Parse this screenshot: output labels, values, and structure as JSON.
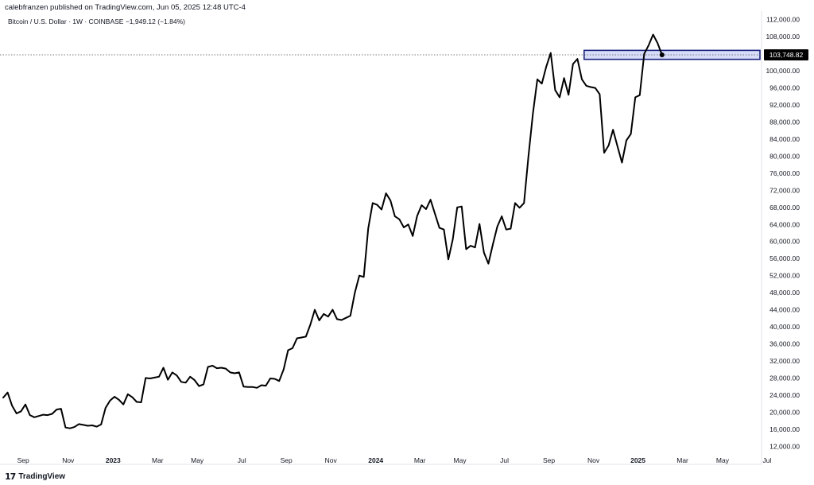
{
  "header": {
    "published": "calebfranzen published on TradingView.com, Jun 05, 2025 12:48 UTC-4",
    "symbol": "Bitcoin / U.S. Dollar · 1W · COINBASE  −1,949.12 (−1.84%)"
  },
  "footer": {
    "logo_mark": "17",
    "logo_text": "TradingView"
  },
  "colors": {
    "line": "#000000",
    "zone_fill": "#c9d0f5",
    "zone_border": "#1a237e",
    "price_tag": "#000000",
    "axis_text": "#131722"
  },
  "chart_data": {
    "type": "line",
    "title": "Bitcoin / U.S. Dollar · 1W · COINBASE",
    "ylim": [
      10000,
      114000
    ],
    "xlim": [
      0,
      170
    ],
    "y_ticks": [
      12000,
      16000,
      20000,
      24000,
      28000,
      32000,
      36000,
      40000,
      44000,
      48000,
      52000,
      56000,
      60000,
      64000,
      68000,
      72000,
      76000,
      80000,
      84000,
      88000,
      92000,
      96000,
      100000,
      104000,
      108000,
      112000
    ],
    "y_tick_labels": [
      "12,000.00",
      "16,000.00",
      "20,000.00",
      "24,000.00",
      "28,000.00",
      "32,000.00",
      "36,000.00",
      "40,000.00",
      "44,000.00",
      "48,000.00",
      "52,000.00",
      "56,000.00",
      "60,000.00",
      "64,000.00",
      "68,000.00",
      "72,000.00",
      "76,000.00",
      "80,000.00",
      "84,000.00",
      "88,000.00",
      "92,000.00",
      "96,000.00",
      "100,000.00",
      "104,000.00",
      "108,000.00",
      "112,000.00"
    ],
    "x_ticks": [
      {
        "x": 4.5,
        "label": "Sep",
        "bold": false
      },
      {
        "x": 14.6,
        "label": "Nov",
        "bold": false
      },
      {
        "x": 24.7,
        "label": "2023",
        "bold": true
      },
      {
        "x": 34.7,
        "label": "Mar",
        "bold": false
      },
      {
        "x": 43.6,
        "label": "May",
        "bold": false
      },
      {
        "x": 53.6,
        "label": "Jul",
        "bold": false
      },
      {
        "x": 63.6,
        "label": "Sep",
        "bold": false
      },
      {
        "x": 73.6,
        "label": "Nov",
        "bold": false
      },
      {
        "x": 83.7,
        "label": "2024",
        "bold": true
      },
      {
        "x": 93.6,
        "label": "Mar",
        "bold": false
      },
      {
        "x": 102.6,
        "label": "May",
        "bold": false
      },
      {
        "x": 112.6,
        "label": "Jul",
        "bold": false
      },
      {
        "x": 122.6,
        "label": "Sep",
        "bold": false
      },
      {
        "x": 132.6,
        "label": "Nov",
        "bold": false
      },
      {
        "x": 142.6,
        "label": "2025",
        "bold": true
      },
      {
        "x": 152.6,
        "label": "Mar",
        "bold": false
      },
      {
        "x": 161.6,
        "label": "May",
        "bold": false
      },
      {
        "x": 171.6,
        "label": "Jul",
        "bold": false
      }
    ],
    "series": [
      {
        "values": [
          23400,
          24600,
          21500,
          19700,
          20200,
          21800,
          19300,
          18800,
          19100,
          19400,
          19300,
          19600,
          20600,
          20800,
          16400,
          16200,
          16500,
          17200,
          17000,
          16800,
          16900,
          16600,
          17100,
          21000,
          22700,
          23600,
          22900,
          21800,
          24200,
          23500,
          22400,
          22300,
          28000,
          27900,
          28100,
          28300,
          30400,
          27600,
          29300,
          28600,
          27100,
          26900,
          28300,
          27500,
          26100,
          26500,
          30600,
          30900,
          30300,
          30400,
          30200,
          29300,
          29100,
          29300,
          26000,
          25900,
          25900,
          25700,
          26300,
          26200,
          27900,
          27800,
          27300,
          30000,
          34500,
          35000,
          37300,
          37500,
          37700,
          40500,
          44000,
          41500,
          43000,
          42400,
          44000,
          41800,
          41600,
          42100,
          42600,
          48000,
          52000,
          51700,
          63000,
          69000,
          68600,
          67500,
          71300,
          69600,
          65900,
          65200,
          63300,
          64000,
          61300,
          66000,
          68500,
          67600,
          69800,
          66500,
          63200,
          62800,
          55800,
          60500,
          68000,
          68200,
          58200,
          59000,
          58600,
          64100,
          57400,
          54800,
          59300,
          63500,
          65900,
          62800,
          63000,
          69000,
          67900,
          69000,
          80000,
          90000,
          98000,
          97000,
          101000,
          104200,
          95500,
          93800,
          98300,
          94400,
          101600,
          102800,
          98000,
          96500,
          96200,
          96000,
          94500,
          80800,
          82500,
          86200,
          82300,
          78500,
          83700,
          85200,
          93800,
          94300,
          104000,
          106000,
          108500,
          106500,
          103748
        ]
      }
    ],
    "zone": {
      "y_low": 102700,
      "y_high": 104800,
      "x_start": 130.5,
      "x_end": 170
    },
    "last_price": 103748.82,
    "last_price_label": "103,748.82"
  }
}
